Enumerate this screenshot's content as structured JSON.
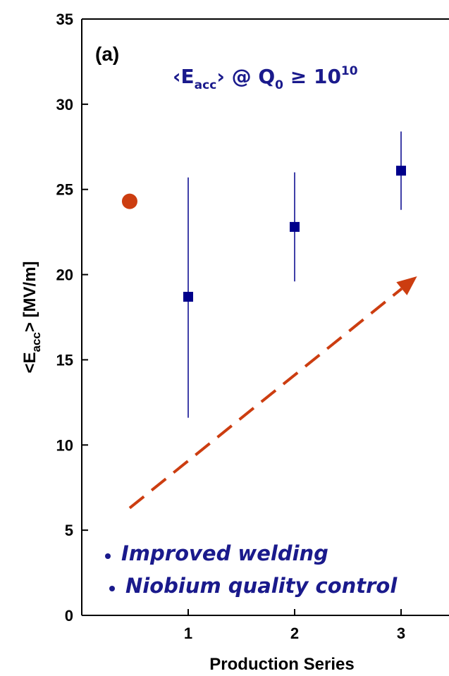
{
  "chart_data": {
    "type": "scatter",
    "panel_label": "(a)",
    "title_parts": {
      "lt": "‹E",
      "sub": "acc",
      "gt": "› @ Q",
      "q_sub": "0",
      "geq": " ≥ 10",
      "exp": "10"
    },
    "ylabel_parts": {
      "pre": "<E",
      "sub": "acc",
      "post": "> [MV/m]"
    },
    "xlabel": "Production Series",
    "xlim": [
      0.3,
      3.4
    ],
    "ylim": [
      0,
      35
    ],
    "x_ticks": [
      1,
      2,
      3
    ],
    "y_ticks": [
      0,
      5,
      10,
      15,
      20,
      25,
      30,
      35
    ],
    "series": [
      {
        "marker": "square",
        "color": "#00008b",
        "points": [
          {
            "x": 1,
            "y": 18.7,
            "err_low": 11.6,
            "err_high": 25.7
          },
          {
            "x": 2,
            "y": 22.8,
            "err_low": 19.6,
            "err_high": 26.0
          },
          {
            "x": 3,
            "y": 26.1,
            "err_low": 23.8,
            "err_high": 28.4
          }
        ]
      },
      {
        "marker": "circle",
        "color": "#cc3d10",
        "points": [
          {
            "x": 0.45,
            "y": 24.3
          }
        ]
      }
    ],
    "arrow": {
      "color": "#cc3d10",
      "from": [
        0.45,
        6.3
      ],
      "to": [
        3.15,
        19.9
      ],
      "style": "dashed"
    },
    "annotations": [
      {
        "text": "Improved welding"
      },
      {
        "text": "Niobium quality control"
      }
    ],
    "annotation_color": "#1a1a8c"
  }
}
